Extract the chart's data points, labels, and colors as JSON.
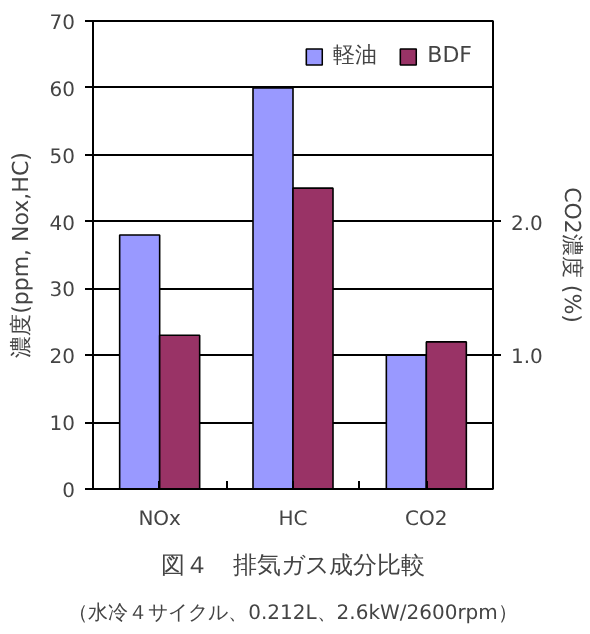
{
  "chart_data": {
    "type": "bar",
    "title": "図４　排気ガス成分比較",
    "subtitle": "（水冷４サイクル、0.212L、2.6kW/2600rpm）",
    "ylabel": "濃度(ppm, Nox,HC)",
    "y2label": "CO2濃度 (%)",
    "categories": [
      "NOx",
      "HC",
      "CO2"
    ],
    "series": [
      {
        "name": "軽油",
        "color": "#9999ff",
        "values": [
          38,
          60,
          null
        ]
      },
      {
        "name": "BDF",
        "color": "#993366",
        "values": [
          23,
          45,
          null
        ]
      },
      {
        "color": "#9999ff",
        "values": [
          null,
          null,
          1.0
        ],
        "axis": "y2"
      },
      {
        "color": "#993366",
        "values": [
          null,
          null,
          1.1
        ],
        "axis": "y2"
      }
    ],
    "ylim": [
      0,
      70
    ],
    "yticks": [
      0,
      10,
      20,
      30,
      40,
      50,
      60,
      70
    ],
    "y2lim": [
      0,
      3.5
    ],
    "y2ticks": [
      {
        "value": 1.0,
        "label": "1.0"
      },
      {
        "value": 2.0,
        "label": "2.0"
      }
    ],
    "grid": "y",
    "legend": "top right"
  }
}
